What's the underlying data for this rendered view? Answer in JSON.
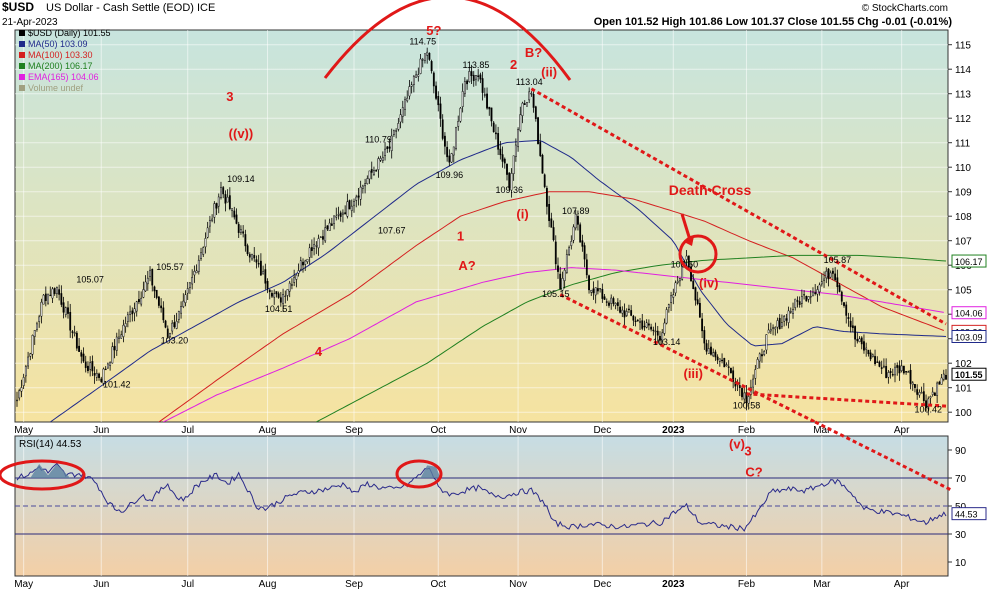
{
  "header": {
    "symbol": "$USD",
    "name": "US Dollar - Cash Settle (EOD) ICE",
    "date": "21-Apr-2023",
    "ohlc": "Open 101.52  High 101.86  Low 101.37  Close 101.55  Chg -0.01 (-0.01%)",
    "copyright": "© StockCharts.com"
  },
  "legend": [
    {
      "label": "$USD (Daily) 101.55",
      "color": "#000000"
    },
    {
      "label": "MA(50) 103.09",
      "color": "#1f2a8a"
    },
    {
      "label": "MA(100) 103.30",
      "color": "#d42020"
    },
    {
      "label": "MA(200) 106.17",
      "color": "#208020"
    },
    {
      "label": "EMA(165) 104.06",
      "color": "#e020e0"
    },
    {
      "label": "Volume undef",
      "color": "#a0a080"
    }
  ],
  "rsi_label": "RSI(14) 44.53",
  "chart_data": [
    {
      "type": "candlestick",
      "title": "$USD (Daily)",
      "ylim": [
        99.6,
        115.6
      ],
      "y_ticks": [
        100,
        101,
        102,
        103,
        104,
        105,
        106,
        107,
        108,
        109,
        110,
        111,
        112,
        113,
        114,
        115
      ],
      "x_labels": [
        "May",
        "Jun",
        "Jul",
        "Aug",
        "Sep",
        "Oct",
        "Nov",
        "Dec",
        "2023",
        "Feb",
        "Mar",
        "Apr"
      ],
      "x_label_index": [
        3,
        38,
        77,
        113,
        152,
        190,
        226,
        264,
        296,
        329,
        363,
        399
      ],
      "n_bars": 420,
      "close_keypoints": [
        [
          0,
          100.5
        ],
        [
          12,
          104.7
        ],
        [
          18,
          105.07
        ],
        [
          30,
          102.0
        ],
        [
          38,
          101.42
        ],
        [
          48,
          103.5
        ],
        [
          60,
          105.57
        ],
        [
          68,
          103.2
        ],
        [
          75,
          104.3
        ],
        [
          92,
          109.14
        ],
        [
          105,
          106.5
        ],
        [
          118,
          104.51
        ],
        [
          133,
          106.8
        ],
        [
          150,
          108.5
        ],
        [
          168,
          110.79
        ],
        [
          180,
          113.8
        ],
        [
          185,
          114.75
        ],
        [
          195,
          109.96
        ],
        [
          202,
          113.6
        ],
        [
          208,
          113.85
        ],
        [
          215,
          111.5
        ],
        [
          222,
          109.36
        ],
        [
          228,
          112.7
        ],
        [
          232,
          113.04
        ],
        [
          240,
          108.0
        ],
        [
          245,
          105.15
        ],
        [
          252,
          107.89
        ],
        [
          258,
          105.2
        ],
        [
          270,
          104.3
        ],
        [
          290,
          103.14
        ],
        [
          302,
          106.5
        ],
        [
          310,
          102.8
        ],
        [
          320,
          101.9
        ],
        [
          329,
          100.58
        ],
        [
          338,
          103.0
        ],
        [
          352,
          104.5
        ],
        [
          362,
          105.2
        ],
        [
          368,
          105.87
        ],
        [
          378,
          103.0
        ],
        [
          392,
          101.6
        ],
        [
          400,
          101.8
        ],
        [
          410,
          100.42
        ],
        [
          419,
          101.55
        ]
      ],
      "labels": [
        {
          "text": "114.75",
          "i": 183,
          "v": 115.0
        },
        {
          "text": "113.85",
          "i": 207,
          "v": 114.05
        },
        {
          "text": "113.04",
          "i": 231,
          "v": 113.35
        },
        {
          "text": "110.79",
          "i": 163,
          "v": 111.0
        },
        {
          "text": "109.96",
          "i": 195,
          "v": 109.55
        },
        {
          "text": "109.36",
          "i": 222,
          "v": 108.95
        },
        {
          "text": "109.14",
          "i": 101,
          "v": 109.4
        },
        {
          "text": "107.89",
          "i": 252,
          "v": 108.1
        },
        {
          "text": "107.67",
          "i": 169,
          "v": 107.3
        },
        {
          "text": "105.57",
          "i": 69,
          "v": 105.8
        },
        {
          "text": "105.07",
          "i": 33,
          "v": 105.3
        },
        {
          "text": "105.87",
          "i": 370,
          "v": 106.1
        },
        {
          "text": "105.15",
          "i": 243,
          "v": 104.7
        },
        {
          "text": "104.51",
          "i": 118,
          "v": 104.1
        },
        {
          "text": "103.20",
          "i": 71,
          "v": 102.8
        },
        {
          "text": "103.14",
          "i": 293,
          "v": 102.75
        },
        {
          "text": "101.42",
          "i": 45,
          "v": 101.0
        },
        {
          "text": "100.58",
          "i": 329,
          "v": 100.15
        },
        {
          "text": "100.42",
          "i": 411,
          "v": 99.98
        },
        {
          "text": "106.50",
          "i": 301,
          "v": 105.9
        }
      ],
      "moving_averages": [
        {
          "name": "MA(50)",
          "color": "#1f2a8a",
          "points": [
            [
              15,
              99.6
            ],
            [
              40,
              101.2
            ],
            [
              60,
              102.5
            ],
            [
              80,
              103.5
            ],
            [
              100,
              104.5
            ],
            [
              120,
              105.3
            ],
            [
              140,
              106.5
            ],
            [
              160,
              107.9
            ],
            [
              180,
              109.3
            ],
            [
              200,
              110.3
            ],
            [
              220,
              111.0
            ],
            [
              236,
              111.1
            ],
            [
              250,
              110.4
            ],
            [
              262,
              109.5
            ],
            [
              280,
              108.3
            ],
            [
              296,
              107.0
            ],
            [
              308,
              105.0
            ],
            [
              320,
              103.6
            ],
            [
              332,
              102.7
            ],
            [
              345,
              102.8
            ],
            [
              360,
              103.5
            ],
            [
              372,
              103.3
            ],
            [
              390,
              103.2
            ],
            [
              419,
              103.09
            ]
          ]
        },
        {
          "name": "MA(100)",
          "color": "#d42020",
          "points": [
            [
              64,
              99.6
            ],
            [
              90,
              101.3
            ],
            [
              120,
              103.2
            ],
            [
              150,
              104.8
            ],
            [
              180,
              106.8
            ],
            [
              200,
              108.0
            ],
            [
              220,
              108.6
            ],
            [
              240,
              109.0
            ],
            [
              258,
              109.0
            ],
            [
              278,
              108.7
            ],
            [
              296,
              108.2
            ],
            [
              310,
              107.8
            ],
            [
              330,
              107.0
            ],
            [
              350,
              106.3
            ],
            [
              370,
              105.3
            ],
            [
              390,
              104.3
            ],
            [
              419,
              103.3
            ]
          ]
        },
        {
          "name": "MA(200)",
          "color": "#208020",
          "points": [
            [
              135,
              99.6
            ],
            [
              160,
              100.8
            ],
            [
              185,
              102.0
            ],
            [
              210,
              103.5
            ],
            [
              230,
              104.5
            ],
            [
              250,
              105.2
            ],
            [
              270,
              105.7
            ],
            [
              290,
              106.0
            ],
            [
              310,
              106.2
            ],
            [
              330,
              106.3
            ],
            [
              350,
              106.4
            ],
            [
              380,
              106.4
            ],
            [
              400,
              106.3
            ],
            [
              419,
              106.17
            ]
          ]
        },
        {
          "name": "EMA(165)",
          "color": "#e020e0",
          "points": [
            [
              66,
              99.6
            ],
            [
              90,
              100.7
            ],
            [
              120,
              101.8
            ],
            [
              150,
              103.0
            ],
            [
              180,
              104.5
            ],
            [
              210,
              105.3
            ],
            [
              230,
              105.7
            ],
            [
              250,
              105.9
            ],
            [
              270,
              105.8
            ],
            [
              290,
              105.6
            ],
            [
              310,
              105.4
            ],
            [
              330,
              105.2
            ],
            [
              350,
              105.0
            ],
            [
              370,
              104.8
            ],
            [
              390,
              104.5
            ],
            [
              419,
              104.06
            ]
          ]
        }
      ],
      "trendlines": [
        {
          "name": "upper",
          "points": [
            [
              232,
              113.2
            ],
            [
              419,
              103.6
            ]
          ]
        },
        {
          "name": "lower",
          "points": [
            [
              245,
              104.8
            ],
            [
              360,
              99.6
            ]
          ]
        },
        {
          "name": "bottom",
          "points": [
            [
              329,
              100.75
            ],
            [
              419,
              100.25
            ]
          ]
        }
      ]
    },
    {
      "type": "line",
      "title": "RSI(14)",
      "ylim": [
        0,
        100
      ],
      "y_ticks": [
        10,
        30,
        50,
        70,
        90
      ],
      "y_ticks_shown": [
        90,
        70,
        50,
        30,
        10
      ],
      "reference_lines": [
        30,
        50,
        70
      ],
      "points": [
        [
          0,
          70
        ],
        [
          6,
          73
        ],
        [
          10,
          78
        ],
        [
          14,
          74
        ],
        [
          18,
          79
        ],
        [
          22,
          72
        ],
        [
          28,
          73
        ],
        [
          32,
          71
        ],
        [
          36,
          66
        ],
        [
          40,
          55
        ],
        [
          44,
          48
        ],
        [
          48,
          47
        ],
        [
          52,
          52
        ],
        [
          56,
          58
        ],
        [
          60,
          54
        ],
        [
          64,
          60
        ],
        [
          68,
          66
        ],
        [
          72,
          56
        ],
        [
          76,
          55
        ],
        [
          80,
          63
        ],
        [
          84,
          68
        ],
        [
          90,
          72
        ],
        [
          95,
          66
        ],
        [
          100,
          73
        ],
        [
          104,
          62
        ],
        [
          108,
          50
        ],
        [
          112,
          48
        ],
        [
          118,
          53
        ],
        [
          124,
          58
        ],
        [
          130,
          60
        ],
        [
          136,
          61
        ],
        [
          142,
          63
        ],
        [
          148,
          66
        ],
        [
          152,
          59
        ],
        [
          158,
          66
        ],
        [
          164,
          63
        ],
        [
          170,
          62
        ],
        [
          176,
          65
        ],
        [
          182,
          73
        ],
        [
          186,
          78
        ],
        [
          190,
          63
        ],
        [
          196,
          58
        ],
        [
          202,
          61
        ],
        [
          208,
          63
        ],
        [
          214,
          58
        ],
        [
          220,
          57
        ],
        [
          226,
          60
        ],
        [
          232,
          61
        ],
        [
          238,
          52
        ],
        [
          242,
          38
        ],
        [
          250,
          35
        ],
        [
          258,
          37
        ],
        [
          266,
          36
        ],
        [
          274,
          35
        ],
        [
          282,
          37
        ],
        [
          290,
          38
        ],
        [
          296,
          45
        ],
        [
          302,
          50
        ],
        [
          308,
          38
        ],
        [
          316,
          36
        ],
        [
          322,
          35
        ],
        [
          328,
          34
        ],
        [
          334,
          45
        ],
        [
          340,
          60
        ],
        [
          348,
          62
        ],
        [
          356,
          61
        ],
        [
          364,
          66
        ],
        [
          370,
          68
        ],
        [
          376,
          60
        ],
        [
          382,
          48
        ],
        [
          390,
          46
        ],
        [
          398,
          44
        ],
        [
          404,
          41
        ],
        [
          410,
          38
        ],
        [
          414,
          42
        ],
        [
          419,
          44.53
        ]
      ]
    }
  ],
  "annotations": {
    "death_cross": "Death Cross",
    "wave_labels": [
      {
        "text": "5?",
        "i": 188,
        "v": 115.4
      },
      {
        "text": "2",
        "i": 224,
        "v": 114.0
      },
      {
        "text": "B?",
        "i": 233,
        "v": 114.5
      },
      {
        "text": "(ii)",
        "i": 240,
        "v": 113.7
      },
      {
        "text": "3",
        "i": 96,
        "v": 112.7
      },
      {
        "text": "((v))",
        "i": 101,
        "v": 111.2
      },
      {
        "text": "1",
        "i": 200,
        "v": 107.0
      },
      {
        "text": "A?",
        "i": 203,
        "v": 105.8
      },
      {
        "text": "(i)",
        "i": 228,
        "v": 107.9
      },
      {
        "text": "4",
        "i": 136,
        "v": 102.3
      },
      {
        "text": "(iv)",
        "i": 312,
        "v": 105.1
      },
      {
        "text": "(iii)",
        "i": 305,
        "v": 101.4
      }
    ],
    "rsi_wave_labels": [
      {
        "text": "(v)",
        "rsi": 94
      },
      {
        "text": "3",
        "rsi": 89
      },
      {
        "text": "C?",
        "rsi": 74
      }
    ]
  },
  "colors": {
    "price_bg_top": "#c7e4de",
    "price_bg_bottom": "#f6e3a0",
    "rsi_bg_top": "#c6dde4",
    "rsi_bg_bottom": "#f3cfa6",
    "annotation_red": "#e01818",
    "candle": "#000000"
  }
}
